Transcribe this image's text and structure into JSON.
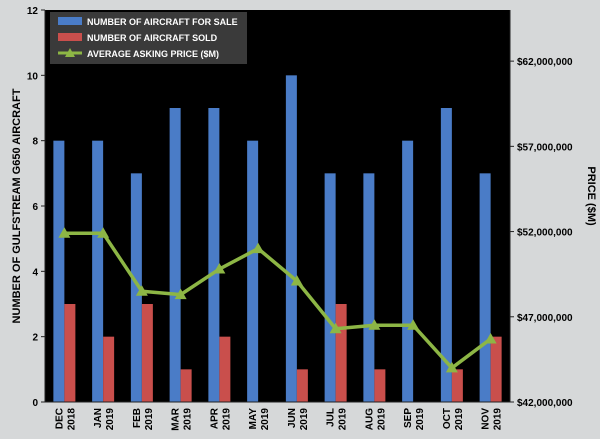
{
  "chart_data": {
    "type": "bar",
    "categories": [
      [
        "DEC",
        "2018"
      ],
      [
        "JAN",
        "2019"
      ],
      [
        "FEB",
        "2019"
      ],
      [
        "MAR",
        "2019"
      ],
      [
        "APR",
        "2019"
      ],
      [
        "MAY",
        "2019"
      ],
      [
        "JUN",
        "2019"
      ],
      [
        "JUL",
        "2019"
      ],
      [
        "AUG",
        "2019"
      ],
      [
        "SEP",
        "2019"
      ],
      [
        "OCT",
        "2019"
      ],
      [
        "NOV",
        "2019"
      ]
    ],
    "series": [
      {
        "name": "NUMBER OF AIRCRAFT FOR SALE",
        "type": "bar",
        "axis": "left",
        "color": "#4a7cc7",
        "values": [
          8,
          8,
          7,
          9,
          9,
          8,
          10,
          7,
          7,
          8,
          9,
          7
        ]
      },
      {
        "name": "NUMBER OF AIRCRAFT SOLD",
        "type": "bar",
        "axis": "left",
        "color": "#c94f4c",
        "values": [
          3,
          2,
          3,
          1,
          2,
          0,
          1,
          3,
          1,
          0,
          1,
          2
        ]
      },
      {
        "name": "AVERAGE ASKING PRICE ($M)",
        "type": "line",
        "axis": "right",
        "color": "#8db645",
        "values": [
          51900000,
          51900000,
          48500000,
          48300000,
          49800000,
          51000000,
          49100000,
          46300000,
          46500000,
          46500000,
          44000000,
          45700000
        ]
      }
    ],
    "ylabel": "NUMBER OF GULFSTREAM G650 AIRCRAFT",
    "y2label": "PRICE ($M)",
    "ylim": [
      0,
      12
    ],
    "yticks": [
      "0",
      "2",
      "4",
      "6",
      "8",
      "10",
      "12"
    ],
    "y2lim": [
      42000000,
      65000000
    ],
    "y2ticks": [
      {
        "value": 42000000,
        "label": "$42,000,000"
      },
      {
        "value": 47000000,
        "label": "$47,000,000"
      },
      {
        "value": 52000000,
        "label": "$52,000,000"
      },
      {
        "value": 57000000,
        "label": "$57,000,000"
      },
      {
        "value": 62000000,
        "label": "$62,000,000"
      }
    ],
    "legend_position": "top-left",
    "grid": false,
    "plot_background": "#000000"
  }
}
